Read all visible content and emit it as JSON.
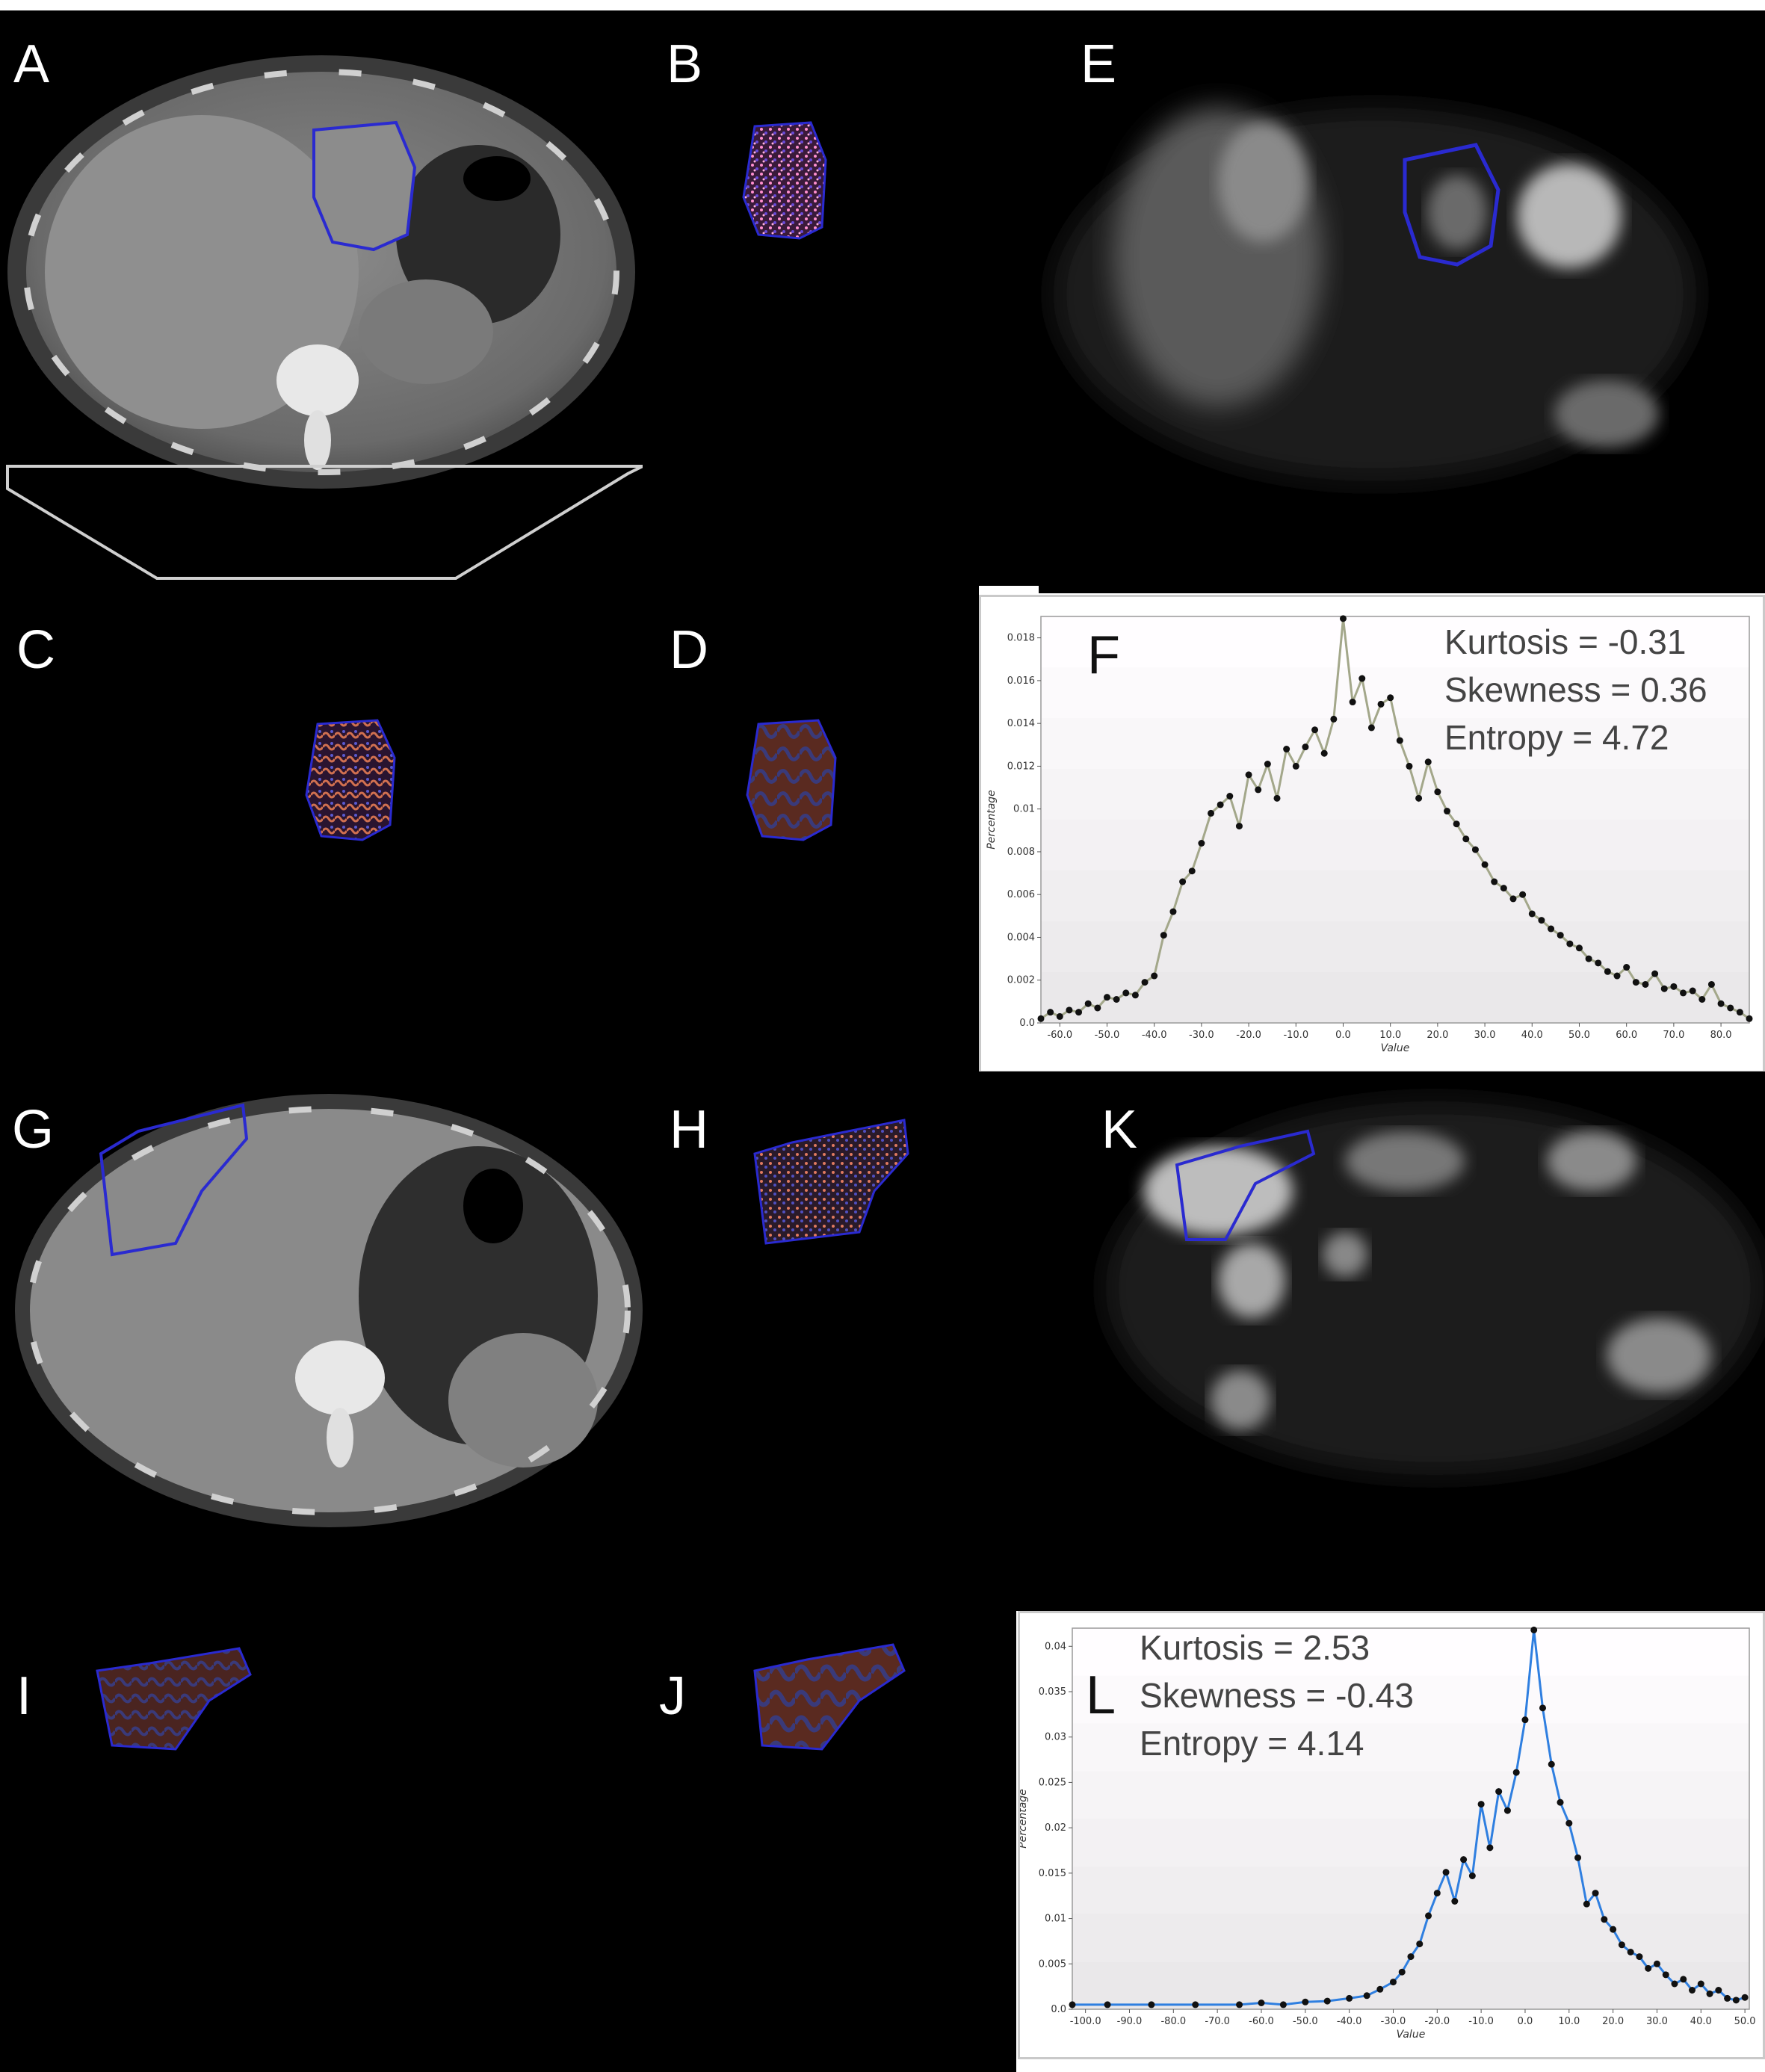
{
  "panels": {
    "A": "A",
    "B": "B",
    "C": "C",
    "D": "D",
    "E": "E",
    "F": "F",
    "G": "G",
    "H": "H",
    "I": "I",
    "J": "J",
    "K": "K",
    "L": "L"
  },
  "colors": {
    "roi_outline": "#2a2ad0",
    "series_F": "#a3a78a",
    "series_L": "#2f7fe0",
    "marker": "#111111"
  },
  "stats_F": {
    "kurtosis": "Kurtosis = -0.31",
    "skewness": "Skewness = 0.36",
    "entropy": "Entropy = 4.72"
  },
  "stats_L": {
    "kurtosis": "Kurtosis = 2.53",
    "skewness": "Skewness = -0.43",
    "entropy": "Entropy = 4.14"
  },
  "chart_data": [
    {
      "type": "line",
      "panel": "F",
      "xlabel": "Value",
      "ylabel": "Percentage",
      "xlim": [
        -64,
        86
      ],
      "ylim": [
        0,
        0.019
      ],
      "x_ticks": [
        "-60.0",
        "-50.0",
        "-40.0",
        "-30.0",
        "-20.0",
        "-10.0",
        "0.0",
        "10.0",
        "20.0",
        "30.0",
        "40.0",
        "50.0",
        "60.0",
        "70.0",
        "80.0"
      ],
      "y_ticks": [
        "0.0",
        "0.002",
        "0.004",
        "0.006",
        "0.008",
        "0.01",
        "0.012",
        "0.014",
        "0.016",
        "0.018"
      ],
      "x": [
        -64,
        -62,
        -60,
        -58,
        -56,
        -54,
        -52,
        -50,
        -48,
        -46,
        -44,
        -42,
        -40,
        -38,
        -36,
        -34,
        -32,
        -30,
        -28,
        -26,
        -24,
        -22,
        -20,
        -18,
        -16,
        -14,
        -12,
        -10,
        -8,
        -6,
        -4,
        -2,
        0,
        2,
        4,
        6,
        8,
        10,
        12,
        14,
        16,
        18,
        20,
        22,
        24,
        26,
        28,
        30,
        32,
        34,
        36,
        38,
        40,
        42,
        44,
        46,
        48,
        50,
        52,
        54,
        56,
        58,
        60,
        62,
        64,
        66,
        68,
        70,
        72,
        74,
        76,
        78,
        80,
        82,
        84,
        86
      ],
      "y": [
        0.0002,
        0.0005,
        0.0003,
        0.0006,
        0.0005,
        0.0009,
        0.0007,
        0.0012,
        0.0011,
        0.0014,
        0.0013,
        0.0019,
        0.0022,
        0.0041,
        0.0052,
        0.0066,
        0.0071,
        0.0084,
        0.0098,
        0.0102,
        0.0106,
        0.0092,
        0.0116,
        0.0109,
        0.0121,
        0.0105,
        0.0128,
        0.012,
        0.0129,
        0.0137,
        0.0126,
        0.0142,
        0.0189,
        0.015,
        0.0161,
        0.0138,
        0.0149,
        0.0152,
        0.0132,
        0.012,
        0.0105,
        0.0122,
        0.0108,
        0.0099,
        0.0093,
        0.0086,
        0.0081,
        0.0074,
        0.0066,
        0.0063,
        0.0058,
        0.006,
        0.0051,
        0.0048,
        0.0044,
        0.0041,
        0.0037,
        0.0035,
        0.003,
        0.0028,
        0.0024,
        0.0022,
        0.0026,
        0.0019,
        0.0018,
        0.0023,
        0.0016,
        0.0017,
        0.0014,
        0.0015,
        0.0011,
        0.0018,
        0.0009,
        0.0007,
        0.0005,
        0.0002
      ]
    },
    {
      "type": "line",
      "panel": "L",
      "xlabel": "Value",
      "ylabel": "Percentage",
      "xlim": [
        -103,
        51
      ],
      "ylim": [
        0,
        0.042
      ],
      "x_ticks": [
        "-100.0",
        "-90.0",
        "-80.0",
        "-70.0",
        "-60.0",
        "-50.0",
        "-40.0",
        "-30.0",
        "-20.0",
        "-10.0",
        "0.0",
        "10.0",
        "20.0",
        "30.0",
        "40.0",
        "50.0"
      ],
      "y_ticks": [
        "0.0",
        "0.005",
        "0.01",
        "0.015",
        "0.02",
        "0.025",
        "0.03",
        "0.035",
        "0.04"
      ],
      "x": [
        -103,
        -95,
        -85,
        -75,
        -65,
        -60,
        -55,
        -50,
        -45,
        -40,
        -36,
        -33,
        -30,
        -28,
        -26,
        -24,
        -22,
        -20,
        -18,
        -16,
        -14,
        -12,
        -10,
        -8,
        -6,
        -4,
        -2,
        0,
        2,
        4,
        6,
        8,
        10,
        12,
        14,
        16,
        18,
        20,
        22,
        24,
        26,
        28,
        30,
        32,
        34,
        36,
        38,
        40,
        42,
        44,
        46,
        48,
        50
      ],
      "y": [
        0.0005,
        0.0005,
        0.0005,
        0.0005,
        0.0005,
        0.0007,
        0.0005,
        0.0008,
        0.0009,
        0.0012,
        0.0015,
        0.0022,
        0.003,
        0.0041,
        0.0058,
        0.0072,
        0.0103,
        0.0128,
        0.0151,
        0.0119,
        0.0165,
        0.0147,
        0.0226,
        0.0178,
        0.024,
        0.0219,
        0.0261,
        0.0319,
        0.0418,
        0.0332,
        0.027,
        0.0228,
        0.0205,
        0.0167,
        0.0116,
        0.0128,
        0.0099,
        0.0088,
        0.0071,
        0.0063,
        0.0058,
        0.0045,
        0.005,
        0.0038,
        0.0028,
        0.0033,
        0.0021,
        0.0028,
        0.0017,
        0.0021,
        0.0012,
        0.001,
        0.0013
      ]
    }
  ]
}
